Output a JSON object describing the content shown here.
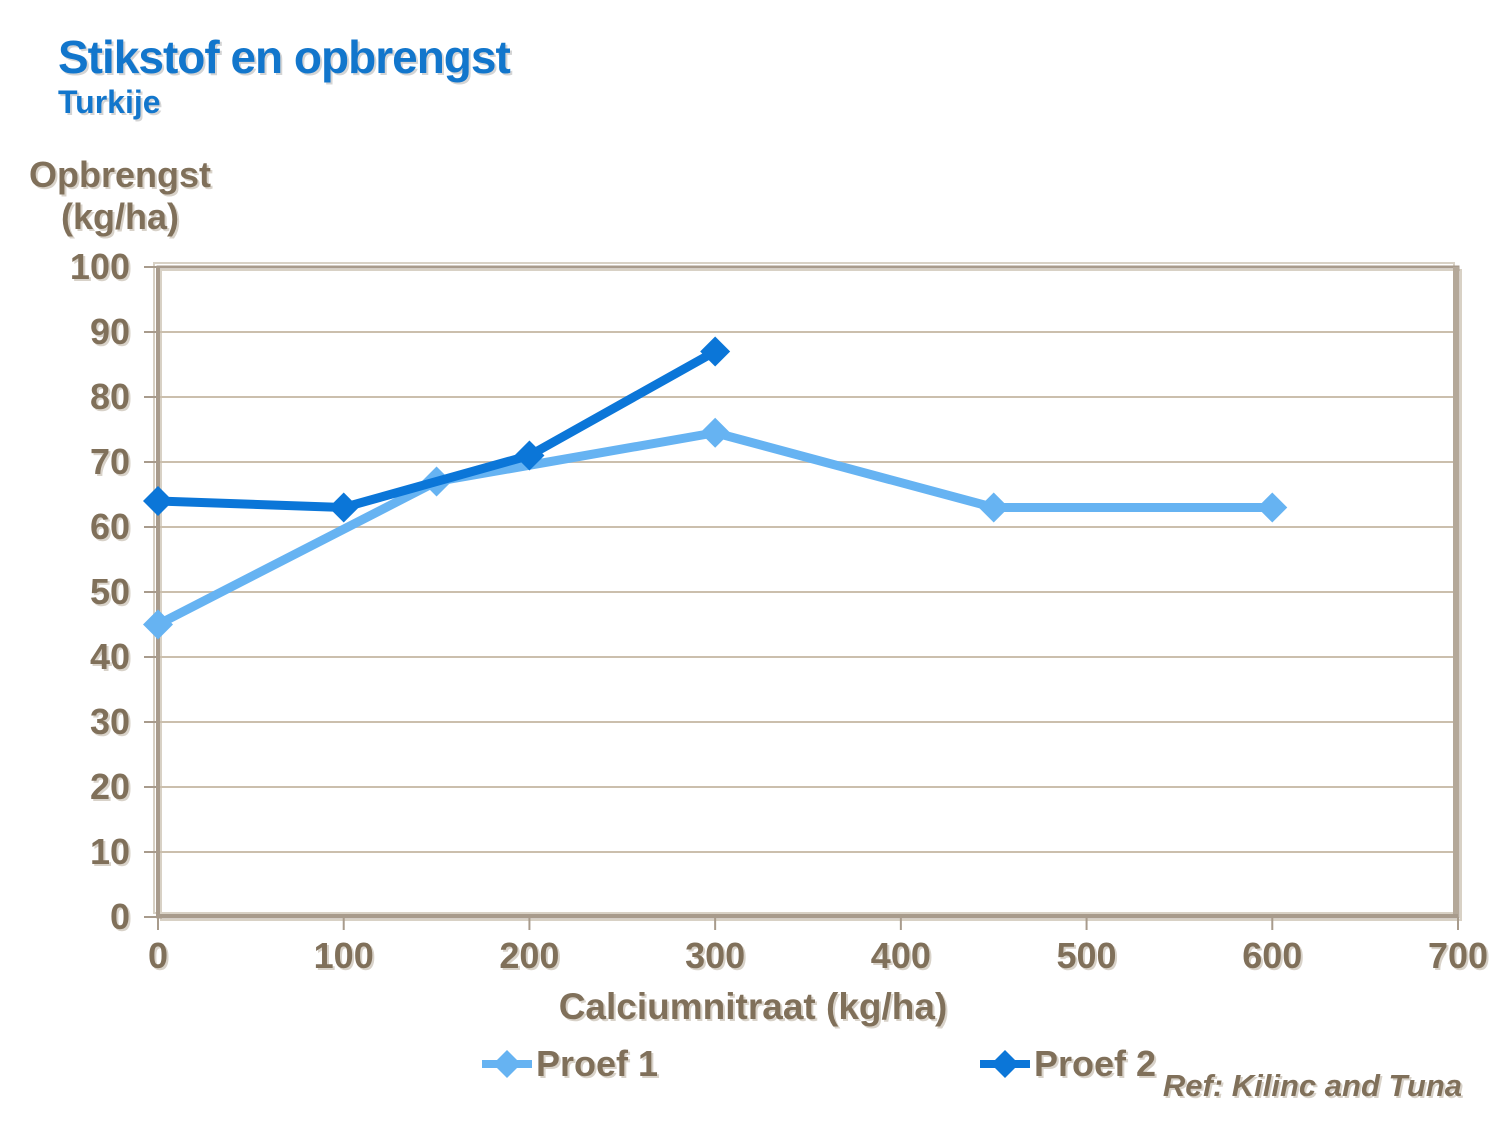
{
  "page": {
    "title": "Stikstof en opbrengst",
    "subtitle": "Turkije",
    "ref": "Ref: Kilinc and Tuna"
  },
  "chart_data": {
    "type": "line",
    "title": "Stikstof en opbrengst",
    "subtitle": "Turkije",
    "xlabel": "Calciumnitraat (kg/ha)",
    "ylabel": "Opbrengst (kg/ha)",
    "ylabel_lines": {
      "line1": "Opbrengst",
      "line2": "(kg/ha)"
    },
    "xlim": [
      0,
      700
    ],
    "ylim": [
      0,
      100
    ],
    "x_ticks": [
      0,
      100,
      200,
      300,
      400,
      500,
      600,
      700
    ],
    "y_ticks": [
      0,
      10,
      20,
      30,
      40,
      50,
      60,
      70,
      80,
      90,
      100
    ],
    "grid": true,
    "legend_position": "bottom",
    "series": [
      {
        "name": "Proef 1",
        "color": "#66b3f2",
        "marker": "diamond",
        "x": [
          0,
          150,
          300,
          450,
          600
        ],
        "y": [
          45,
          67,
          74.5,
          63,
          63
        ]
      },
      {
        "name": "Proef 2",
        "color": "#0b76d8",
        "marker": "diamond",
        "x": [
          0,
          100,
          200,
          300
        ],
        "y": [
          64,
          63,
          71,
          87
        ]
      }
    ],
    "annotation": "Ref: Kilinc and Tuna"
  },
  "colors": {
    "title_blue": "#1276cc",
    "axis_text_brown": "#80705a",
    "gridline": "#cbbfad",
    "plot_border_dark": "#a89b8c",
    "plot_border_light": "#d8d1c5",
    "plot_border_right": "#b4a899",
    "series_1": "#66b3f2",
    "series_2": "#0b76d8"
  }
}
